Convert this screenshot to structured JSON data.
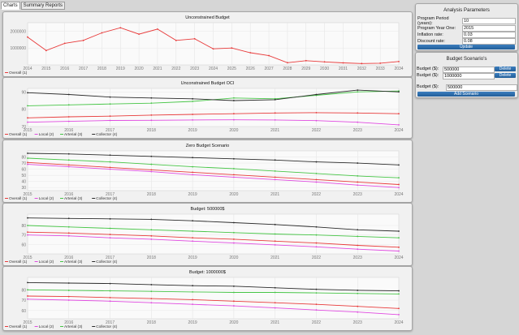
{
  "tabs": [
    {
      "label": "Charts",
      "active": true
    },
    {
      "label": "Summary Reports",
      "active": false
    }
  ],
  "colors": {
    "overall": "#e83a3a",
    "local": "#e04ae0",
    "arterial": "#46c546",
    "collector": "#2a2a2a",
    "accent": "#2a67a8"
  },
  "analysis": {
    "title": "Analysis Parameters",
    "fields": [
      {
        "label": "Program Period (years):",
        "value": "10"
      },
      {
        "label": "Program Year One:",
        "value": "2015"
      },
      {
        "label": "Inflation rate:",
        "value": "0.03"
      },
      {
        "label": "Discount rate:",
        "value": "0.08"
      }
    ],
    "update_label": "Update"
  },
  "scenarios": {
    "title": "Budget Scenario's",
    "rows": [
      {
        "label": "Budget ($):",
        "value": "500000",
        "delete_label": "Delete"
      },
      {
        "label": "Budget ($):",
        "value": "1000000",
        "delete_label": "Delete"
      }
    ],
    "new_label": "Budget ($):",
    "new_value": "500000",
    "add_label": "Add Scenario"
  },
  "chart_data": [
    {
      "type": "line",
      "title": "Unconstrained Budget",
      "x": [
        2014,
        2015,
        2016,
        2017,
        2018,
        2019,
        2020,
        2021,
        2022,
        2023,
        2024,
        2025,
        2026,
        2027,
        2028,
        2029,
        2030,
        2031,
        2032,
        2033,
        2034
      ],
      "ylim": [
        0,
        2500000
      ],
      "yticks": [
        {
          "value": 1000000,
          "label": "1000000"
        },
        {
          "value": 2000000,
          "label": "2000000"
        }
      ],
      "series": [
        {
          "name": "Overall (1)",
          "key": "overall",
          "values": [
            1650000,
            850000,
            1280000,
            1450000,
            1900000,
            2200000,
            1820000,
            2120000,
            1450000,
            1550000,
            950000,
            1000000,
            720000,
            550000,
            130000,
            250000,
            180000,
            120000,
            80000,
            100000,
            200000
          ]
        }
      ],
      "legend": [
        "Overall (1)"
      ]
    },
    {
      "type": "line",
      "title": "Unconstrained Budget OCI",
      "x": [
        2015,
        2016,
        2017,
        2018,
        2019,
        2020,
        2021,
        2022,
        2023,
        2024
      ],
      "ylim": [
        70,
        92
      ],
      "yticks": [
        {
          "value": 70,
          "label": "70"
        },
        {
          "value": 80,
          "label": "80"
        },
        {
          "value": 90,
          "label": "90"
        }
      ],
      "series": [
        {
          "name": "Overall (1)",
          "key": "overall",
          "values": [
            75.0,
            75.6,
            76.0,
            76.6,
            77.0,
            77.4,
            77.8,
            78.0,
            77.8,
            77.4
          ]
        },
        {
          "name": "Local (2)",
          "key": "local",
          "values": [
            72.5,
            73.0,
            73.5,
            73.6,
            73.8,
            73.9,
            73.8,
            73.4,
            72.5,
            71.0
          ]
        },
        {
          "name": "Arterial (3)",
          "key": "arterial",
          "values": [
            82.0,
            82.5,
            83.0,
            83.5,
            84.5,
            86.5,
            86.0,
            88.0,
            90.0,
            90.5
          ]
        },
        {
          "name": "Collector (4)",
          "key": "collector",
          "values": [
            89.5,
            88.5,
            87.0,
            86.5,
            86.0,
            85.0,
            85.5,
            88.5,
            91.0,
            90.0
          ]
        }
      ],
      "legend": [
        "Overall (1)",
        "Local (2)",
        "Arterial (3)",
        "Collector (4)"
      ]
    },
    {
      "type": "line",
      "title": "Zero Budget Scenario",
      "x": [
        2015,
        2016,
        2017,
        2018,
        2019,
        2020,
        2021,
        2022,
        2023,
        2024
      ],
      "ylim": [
        25,
        90
      ],
      "yticks": [
        {
          "value": 30,
          "label": "30"
        },
        {
          "value": 40,
          "label": "40"
        },
        {
          "value": 50,
          "label": "50"
        },
        {
          "value": 60,
          "label": "60"
        },
        {
          "value": 70,
          "label": "70"
        },
        {
          "value": 80,
          "label": "80"
        }
      ],
      "series": [
        {
          "name": "Overall (1)",
          "key": "overall",
          "values": [
            71,
            67,
            63,
            59,
            55,
            51,
            47,
            43,
            39,
            35
          ]
        },
        {
          "name": "Local (2)",
          "key": "local",
          "values": [
            68,
            64,
            60,
            56,
            51,
            47,
            43,
            39,
            34,
            30
          ]
        },
        {
          "name": "Arterial (3)",
          "key": "arterial",
          "values": [
            78,
            75,
            72,
            68,
            64,
            61,
            57,
            53,
            49,
            46
          ]
        },
        {
          "name": "Collector (4)",
          "key": "collector",
          "values": [
            86,
            85,
            83,
            81,
            79,
            77,
            75,
            72,
            70,
            67
          ]
        }
      ],
      "legend": [
        "Overall (1)",
        "Local (2)",
        "Arterial (3)",
        "Collector (4)"
      ]
    },
    {
      "type": "line",
      "title": "Budget: 500000$",
      "x": [
        2015,
        2016,
        2017,
        2018,
        2019,
        2020,
        2021,
        2022,
        2023,
        2024
      ],
      "ylim": [
        50,
        92
      ],
      "yticks": [
        {
          "value": 60,
          "label": "60"
        },
        {
          "value": 70,
          "label": "70"
        },
        {
          "value": 80,
          "label": "80"
        }
      ],
      "series": [
        {
          "name": "Overall (1)",
          "key": "overall",
          "values": [
            73,
            72,
            70.5,
            69,
            67,
            65.5,
            63.5,
            61.5,
            59,
            57
          ]
        },
        {
          "name": "Local (2)",
          "key": "local",
          "values": [
            70,
            69,
            67,
            65.5,
            63.5,
            61.5,
            59.5,
            57.5,
            55,
            53
          ]
        },
        {
          "name": "Arterial (3)",
          "key": "arterial",
          "values": [
            80,
            78.5,
            77,
            75.5,
            74,
            72.5,
            71,
            70,
            68.5,
            67
          ]
        },
        {
          "name": "Collector (4)",
          "key": "collector",
          "values": [
            88,
            87.5,
            87,
            86.5,
            85,
            83,
            81,
            78.5,
            75.5,
            74
          ]
        }
      ],
      "legend": [
        "Overall (1)",
        "Local (2)",
        "Arterial (3)",
        "Collector (4)"
      ]
    },
    {
      "type": "line",
      "title": "Budget: 1000000$",
      "x": [
        2015,
        2016,
        2017,
        2018,
        2019,
        2020,
        2021,
        2022,
        2023,
        2024
      ],
      "ylim": [
        52,
        92
      ],
      "yticks": [
        {
          "value": 60,
          "label": "60"
        },
        {
          "value": 70,
          "label": "70"
        },
        {
          "value": 80,
          "label": "80"
        }
      ],
      "series": [
        {
          "name": "Overall (1)",
          "key": "overall",
          "values": [
            74,
            73.5,
            72.5,
            71.5,
            70.5,
            69,
            67.5,
            66,
            64,
            62
          ]
        },
        {
          "name": "Local (2)",
          "key": "local",
          "values": [
            71,
            70,
            69,
            67.5,
            66,
            64.5,
            62.5,
            60.5,
            58.5,
            56
          ]
        },
        {
          "name": "Arterial (3)",
          "key": "arterial",
          "values": [
            80,
            79.5,
            79,
            78.5,
            78,
            77.5,
            77.5,
            77,
            76.5,
            76
          ]
        },
        {
          "name": "Collector (4)",
          "key": "collector",
          "values": [
            87,
            86.5,
            86,
            85,
            84,
            83.5,
            82,
            80.5,
            79.5,
            79
          ]
        }
      ],
      "legend": [
        "Overall (1)",
        "Local (2)",
        "Arterial (3)",
        "Collector (4)"
      ]
    }
  ]
}
